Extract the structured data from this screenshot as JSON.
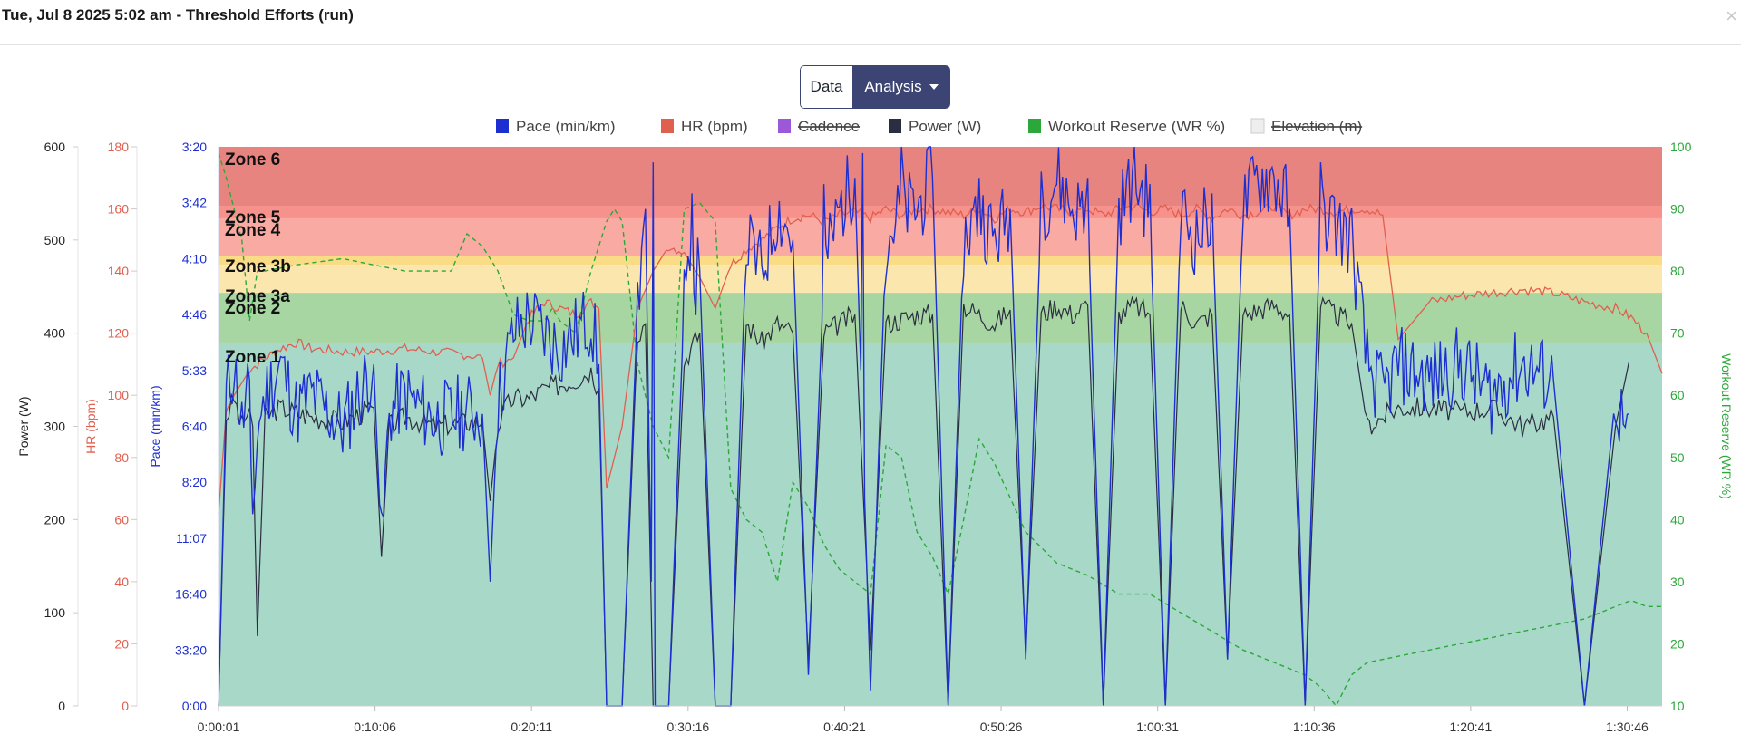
{
  "header": {
    "title": "Tue, Jul 8 2025 5:02 am - Threshold Efforts (run)",
    "close_label": "×"
  },
  "toggle": {
    "data_label": "Data",
    "analysis_label": "Analysis"
  },
  "colors": {
    "pace": "#1d2fd0",
    "hr": "#e06050",
    "cadence": "#9b59d9",
    "power": "#2a2e40",
    "reserve": "#2ca83a",
    "elevation": "#eeeeee",
    "zone1": "#a8d8c8",
    "zone2": "#a8d6a2",
    "zone3a": "#fbe7ae",
    "zone3b": "#fbdc86",
    "zone4": "#f9aaa2",
    "zone5": "#f7918c",
    "zone6": "#e88480"
  },
  "chart_data": {
    "type": "line",
    "legend": [
      {
        "label": "Pace (min/km)",
        "color": "#1d2fd0",
        "hidden": false
      },
      {
        "label": "HR (bpm)",
        "color": "#e06050",
        "hidden": false
      },
      {
        "label": "Cadence",
        "color": "#9b59d9",
        "hidden": true
      },
      {
        "label": "Power (W)",
        "color": "#2a2e40",
        "hidden": false
      },
      {
        "label": "Workout Reserve (WR %)",
        "color": "#2ca83a",
        "hidden": false
      },
      {
        "label": "Elevation (m)",
        "color": "#eeeeee",
        "hidden": true
      }
    ],
    "x_ticks": [
      "0:00:01",
      "0:10:06",
      "0:20:11",
      "0:30:16",
      "0:40:21",
      "0:50:26",
      "1:00:31",
      "1:10:36",
      "1:20:41",
      "1:30:46"
    ],
    "x_range_minutes": [
      0,
      93
    ],
    "axes": {
      "power": {
        "label": "Power (W)",
        "ticks": [
          "0",
          "100",
          "200",
          "300",
          "400",
          "500",
          "600"
        ],
        "range": [
          0,
          600
        ]
      },
      "hr": {
        "label": "HR (bpm)",
        "ticks": [
          "0",
          "20",
          "40",
          "60",
          "80",
          "100",
          "120",
          "140",
          "160",
          "180"
        ],
        "range": [
          0,
          180
        ]
      },
      "pace": {
        "label": "Pace (min/km)",
        "ticks": [
          "0:00",
          "33:20",
          "16:40",
          "11:07",
          "8:20",
          "6:40",
          "5:33",
          "4:46",
          "4:10",
          "3:42",
          "3:20"
        ],
        "range_speed_kmh": [
          0,
          18
        ]
      },
      "reserve": {
        "label": "Workout Reserve (WR %)",
        "ticks": [
          "10",
          "20",
          "30",
          "40",
          "50",
          "60",
          "70",
          "80",
          "90",
          "100"
        ],
        "range": [
          10,
          100
        ]
      }
    },
    "zones": [
      {
        "name": "Zone 6",
        "from_hr": 161,
        "to_hr": 180
      },
      {
        "name": "Zone 5",
        "from_hr": 157,
        "to_hr": 161
      },
      {
        "name": "Zone 4",
        "from_hr": 145,
        "to_hr": 157
      },
      {
        "name": "Zone 3b",
        "from_hr": 142,
        "to_hr": 145
      },
      {
        "name": "Zone 3a",
        "from_hr": 133,
        "to_hr": 142
      },
      {
        "name": "Zone 2",
        "from_hr": 117,
        "to_hr": 133
      },
      {
        "name": "Zone 1",
        "from_hr": 0,
        "to_hr": 117
      }
    ],
    "hr": {
      "t": [
        0,
        0.5,
        1,
        2,
        3,
        4,
        5,
        6,
        8,
        10,
        12,
        14,
        16,
        17,
        17.5,
        18,
        19,
        20,
        21,
        22,
        23,
        24,
        24.5,
        25,
        26,
        27,
        28,
        29,
        30,
        31,
        32,
        33,
        34,
        35,
        36,
        37,
        38,
        39,
        40,
        41,
        42,
        43,
        44,
        45,
        46,
        47,
        48,
        49,
        50,
        51,
        52,
        53,
        54,
        55,
        56,
        57,
        58,
        59,
        60,
        61,
        62,
        63,
        64,
        65,
        66,
        67,
        68,
        69,
        70,
        71,
        72,
        73,
        74,
        75,
        76,
        78,
        80,
        82,
        84,
        86,
        88,
        90,
        91,
        92,
        93
      ],
      "v": [
        62,
        95,
        100,
        108,
        112,
        115,
        117,
        115,
        114,
        114,
        115,
        114,
        113,
        112,
        100,
        110,
        112,
        125,
        130,
        128,
        126,
        130,
        128,
        70,
        90,
        128,
        140,
        148,
        146,
        138,
        128,
        142,
        147,
        150,
        154,
        157,
        158,
        156,
        158,
        159,
        157,
        160,
        158,
        160,
        160,
        159,
        158,
        160,
        157,
        160,
        159,
        161,
        160,
        159,
        160,
        158,
        160,
        161,
        159,
        160,
        158,
        160,
        157,
        160,
        158,
        159,
        161,
        158,
        160,
        160,
        159,
        160,
        160,
        158,
        118,
        130,
        132,
        133,
        134,
        133,
        130,
        128,
        125,
        120,
        107
      ]
    },
    "reserve": {
      "t": [
        0,
        0.5,
        1,
        1.5,
        2,
        2.5,
        3,
        5,
        8,
        10,
        12,
        14,
        15,
        16,
        17,
        18,
        19,
        20,
        21,
        21.5,
        22,
        23,
        24,
        25,
        25.5,
        26,
        27,
        28,
        29,
        30,
        31,
        32,
        33,
        34,
        35,
        36,
        37,
        38,
        39,
        40,
        42,
        43,
        44,
        45,
        46,
        47,
        48,
        49,
        50,
        52,
        54,
        56,
        58,
        60,
        62,
        64,
        66,
        68,
        70,
        71,
        72,
        73,
        74,
        76,
        78,
        80,
        82,
        84,
        86,
        88,
        90,
        91,
        92,
        93
      ],
      "v": [
        99,
        95,
        90,
        85,
        72,
        80,
        80,
        81,
        82,
        81,
        80,
        80,
        80,
        86,
        84,
        80,
        73,
        72,
        72,
        74,
        72,
        70,
        80,
        88,
        90,
        88,
        65,
        55,
        50,
        90,
        91,
        88,
        45,
        40,
        38,
        30,
        46,
        42,
        36,
        32,
        28,
        52,
        50,
        38,
        34,
        28,
        40,
        53,
        49,
        38,
        33,
        31,
        28,
        28,
        25,
        22,
        19,
        17,
        15,
        13,
        10,
        15,
        17,
        18,
        19,
        20,
        21,
        22,
        23,
        24,
        26,
        27,
        26,
        26
      ]
    },
    "power": {
      "t": [
        0,
        0.5,
        1,
        1.5,
        2,
        2.2,
        2.5,
        3,
        4,
        5,
        6,
        8,
        10,
        10.5,
        11,
        12,
        14,
        16,
        17,
        17.5,
        18,
        18.5,
        19,
        20,
        21,
        22,
        23,
        24,
        24.5,
        25,
        26,
        27,
        27.5,
        28,
        29,
        30,
        31,
        32,
        33,
        34,
        35,
        36,
        37,
        38,
        39,
        40,
        41,
        42,
        43,
        44,
        45,
        46,
        47,
        48,
        49,
        50,
        51,
        52,
        53,
        54,
        55,
        56,
        57,
        58,
        59,
        60,
        61,
        62,
        63,
        64,
        65,
        66,
        67,
        68,
        69,
        70,
        71,
        72,
        73,
        74,
        75,
        76,
        78,
        80,
        82,
        84,
        86,
        88,
        90,
        91,
        92,
        93
      ],
      "v": [
        0,
        310,
        330,
        300,
        320,
        300,
        75,
        310,
        320,
        315,
        310,
        305,
        320,
        160,
        300,
        310,
        300,
        305,
        305,
        220,
        300,
        320,
        330,
        330,
        340,
        345,
        350,
        360,
        340,
        0,
        0,
        400,
        410,
        0,
        0,
        370,
        400,
        0,
        0,
        410,
        390,
        410,
        400,
        50,
        400,
        410,
        420,
        60,
        410,
        415,
        420,
        420,
        0,
        430,
        420,
        410,
        425,
        60,
        420,
        430,
        420,
        430,
        0,
        420,
        430,
        420,
        0,
        430,
        410,
        420,
        50,
        420,
        425,
        430,
        420,
        0,
        430,
        420,
        410,
        300,
        310,
        320,
        320,
        315,
        320,
        300,
        310,
        0,
        300,
        380
      ]
    },
    "pace": {
      "t": [
        0,
        0.5,
        1,
        1.5,
        2,
        2.2,
        2.5,
        3,
        4,
        5,
        6,
        8,
        10,
        10.5,
        11,
        12,
        14,
        16,
        17,
        17.5,
        18,
        18.5,
        19,
        20,
        21,
        22,
        23,
        24,
        24.5,
        25,
        26,
        27,
        27.5,
        28,
        29,
        30,
        31,
        32,
        33,
        34,
        35,
        36,
        37,
        38,
        39,
        40,
        41,
        42,
        43,
        44,
        45,
        46,
        47,
        48,
        49,
        50,
        51,
        52,
        53,
        54,
        55,
        56,
        57,
        58,
        59,
        60,
        61,
        62,
        63,
        64,
        65,
        66,
        67,
        68,
        69,
        70,
        71,
        72,
        73,
        74,
        75,
        76,
        78,
        80,
        82,
        84,
        86,
        88,
        90,
        91,
        92,
        93
      ],
      "v_kmh": [
        0,
        10,
        11,
        9,
        10.5,
        5,
        9,
        10,
        11,
        9.5,
        10,
        9,
        11,
        5,
        9.5,
        10,
        9.2,
        9.5,
        9.4,
        4,
        9.7,
        11,
        12,
        12.5,
        12,
        11.5,
        12,
        12.5,
        11,
        0,
        0,
        13,
        16,
        0,
        0,
        13,
        14,
        0,
        0,
        15,
        14,
        16,
        15,
        1,
        14,
        16,
        17,
        0.5,
        15,
        16,
        16,
        17,
        0,
        15,
        16,
        15,
        16,
        1.5,
        16,
        17,
        16,
        16,
        0,
        16,
        17,
        16,
        0,
        16,
        15,
        16,
        1.5,
        16,
        17,
        17,
        16,
        0,
        16,
        15.5,
        15,
        11,
        10,
        11,
        10.5,
        11,
        10,
        11,
        10.5,
        0,
        10,
        8
      ]
    },
    "pace_spikes": [
      {
        "t": 28,
        "kmh": 17.5
      },
      {
        "t": 30.5,
        "kmh": 16.5
      },
      {
        "t": 39,
        "kmh": 16.8
      },
      {
        "t": 41.5,
        "kmh": 17.8
      },
      {
        "t": 44,
        "kmh": 18
      },
      {
        "t": 49,
        "kmh": 17
      },
      {
        "t": 53,
        "kmh": 17.2
      },
      {
        "t": 56,
        "kmh": 17
      },
      {
        "t": 60,
        "kmh": 16.8
      },
      {
        "t": 64,
        "kmh": 16.5
      },
      {
        "t": 71,
        "kmh": 17.5
      }
    ]
  }
}
